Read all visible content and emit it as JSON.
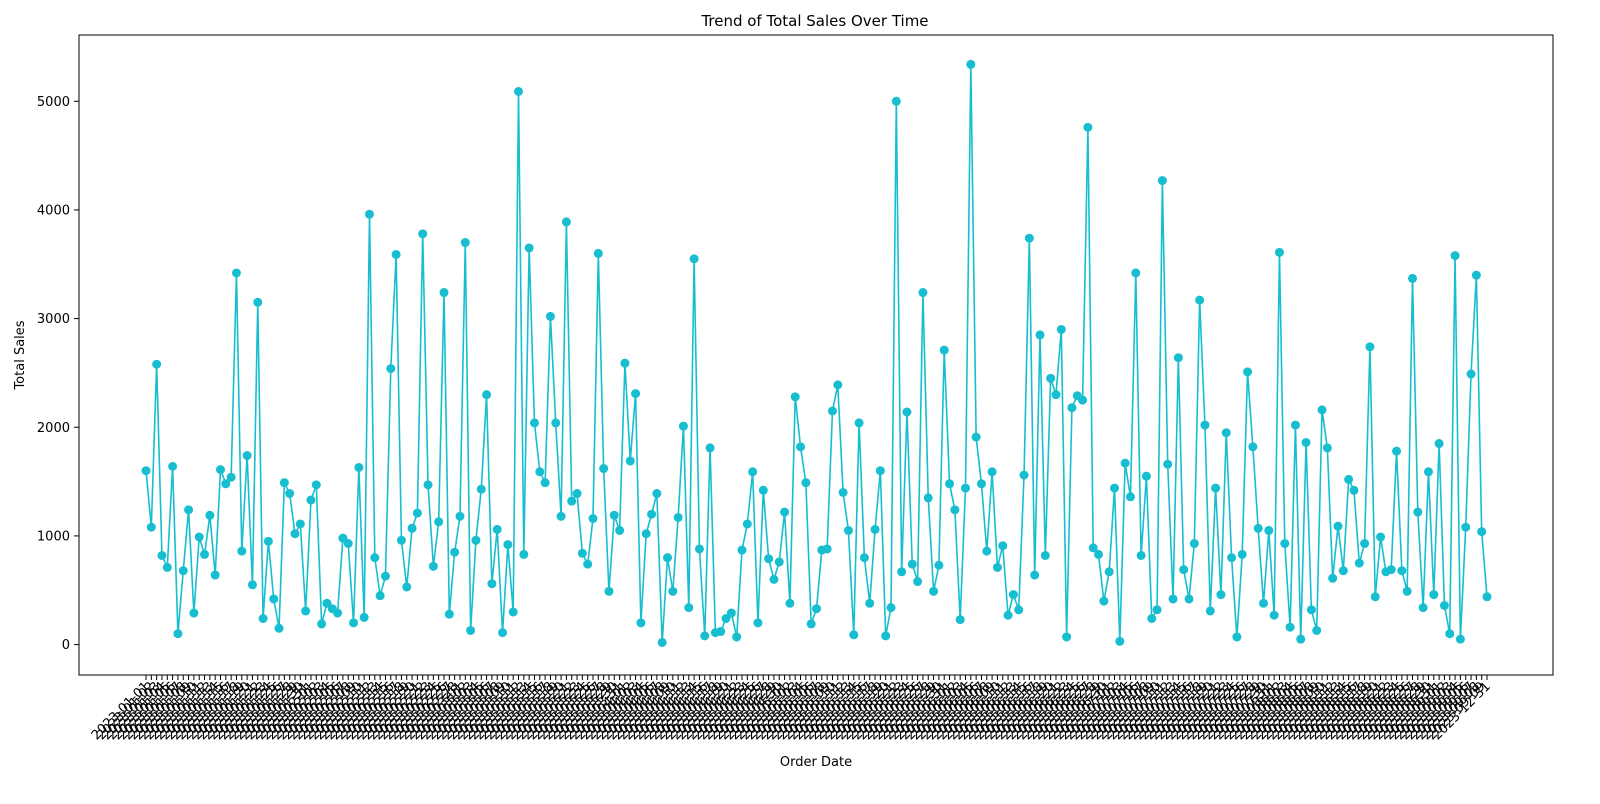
{
  "chart_data": {
    "type": "line",
    "title": "Trend of Total Sales Over Time",
    "xlabel": "Order Date",
    "ylabel": "Total Sales",
    "ylim": [
      -280,
      5610
    ],
    "yticks": [
      0,
      1000,
      2000,
      3000,
      4000,
      5000
    ],
    "grid": false,
    "legend": "none",
    "marker": "circle",
    "x_tick_rotation_deg": 45,
    "x_start_label": "2023-01-01",
    "x_end_label": "2023-12-31",
    "series": [
      {
        "color": "#17becf",
        "values": [
          1600,
          1080,
          2580,
          820,
          710,
          1640,
          100,
          680,
          1240,
          290,
          990,
          830,
          1190,
          640,
          1610,
          1480,
          1540,
          3420,
          860,
          1740,
          550,
          3150,
          240,
          950,
          420,
          150,
          1490,
          1390,
          1020,
          1110,
          310,
          1330,
          1470,
          190,
          380,
          330,
          290,
          980,
          930,
          200,
          1630,
          250,
          3960,
          800,
          450,
          630,
          2540,
          3590,
          960,
          530,
          1070,
          1210,
          3780,
          1470,
          720,
          1130,
          3240,
          280,
          850,
          1180,
          3700,
          130,
          960,
          1430,
          2300,
          560,
          1060,
          110,
          920,
          300,
          5090,
          830,
          3650,
          2040,
          1590,
          1490,
          3020,
          2040,
          1180,
          3890,
          1320,
          1390,
          840,
          740,
          1160,
          3600,
          1620,
          490,
          1190,
          1050,
          2590,
          1690,
          2310,
          200,
          1020,
          1200,
          1390,
          20,
          800,
          490,
          1170,
          2010,
          340,
          3550,
          880,
          80,
          1810,
          110,
          120,
          240,
          290,
          70,
          870,
          1110,
          1590,
          200,
          1420,
          790,
          600,
          760,
          1220,
          380,
          2280,
          1820,
          1490,
          190,
          330,
          870,
          880,
          2150,
          2390,
          1400,
          1050,
          90,
          2040,
          800,
          380,
          1060,
          1600,
          80,
          340,
          5000,
          670,
          2140,
          740,
          580,
          3240,
          1350,
          490,
          730,
          2710,
          1480,
          1240,
          230,
          1440,
          5340,
          1910,
          1480,
          860,
          1590,
          710,
          910,
          270,
          460,
          320,
          1560,
          3740,
          640,
          2850,
          820,
          2450,
          2300,
          2900,
          70,
          2180,
          2290,
          2250,
          4760,
          890,
          830,
          400,
          670,
          1440,
          30,
          1670,
          1360,
          3420,
          820,
          1550,
          240,
          320,
          4270,
          1660,
          420,
          2640,
          690,
          420,
          930,
          3170,
          2020,
          310,
          1440,
          460,
          1950,
          800,
          70,
          830,
          2510,
          1820,
          1070,
          380,
          1050,
          270,
          3610,
          930,
          160,
          2020,
          50,
          1860,
          320,
          130,
          2160,
          1810,
          610,
          1090,
          680,
          1520,
          1420,
          750,
          930,
          2740,
          440,
          990,
          670,
          690,
          1780,
          680,
          490,
          3370,
          1220,
          340,
          1590,
          460,
          1850,
          360,
          100,
          3580,
          50,
          1080,
          2490,
          3400,
          1040,
          440
        ]
      }
    ]
  }
}
